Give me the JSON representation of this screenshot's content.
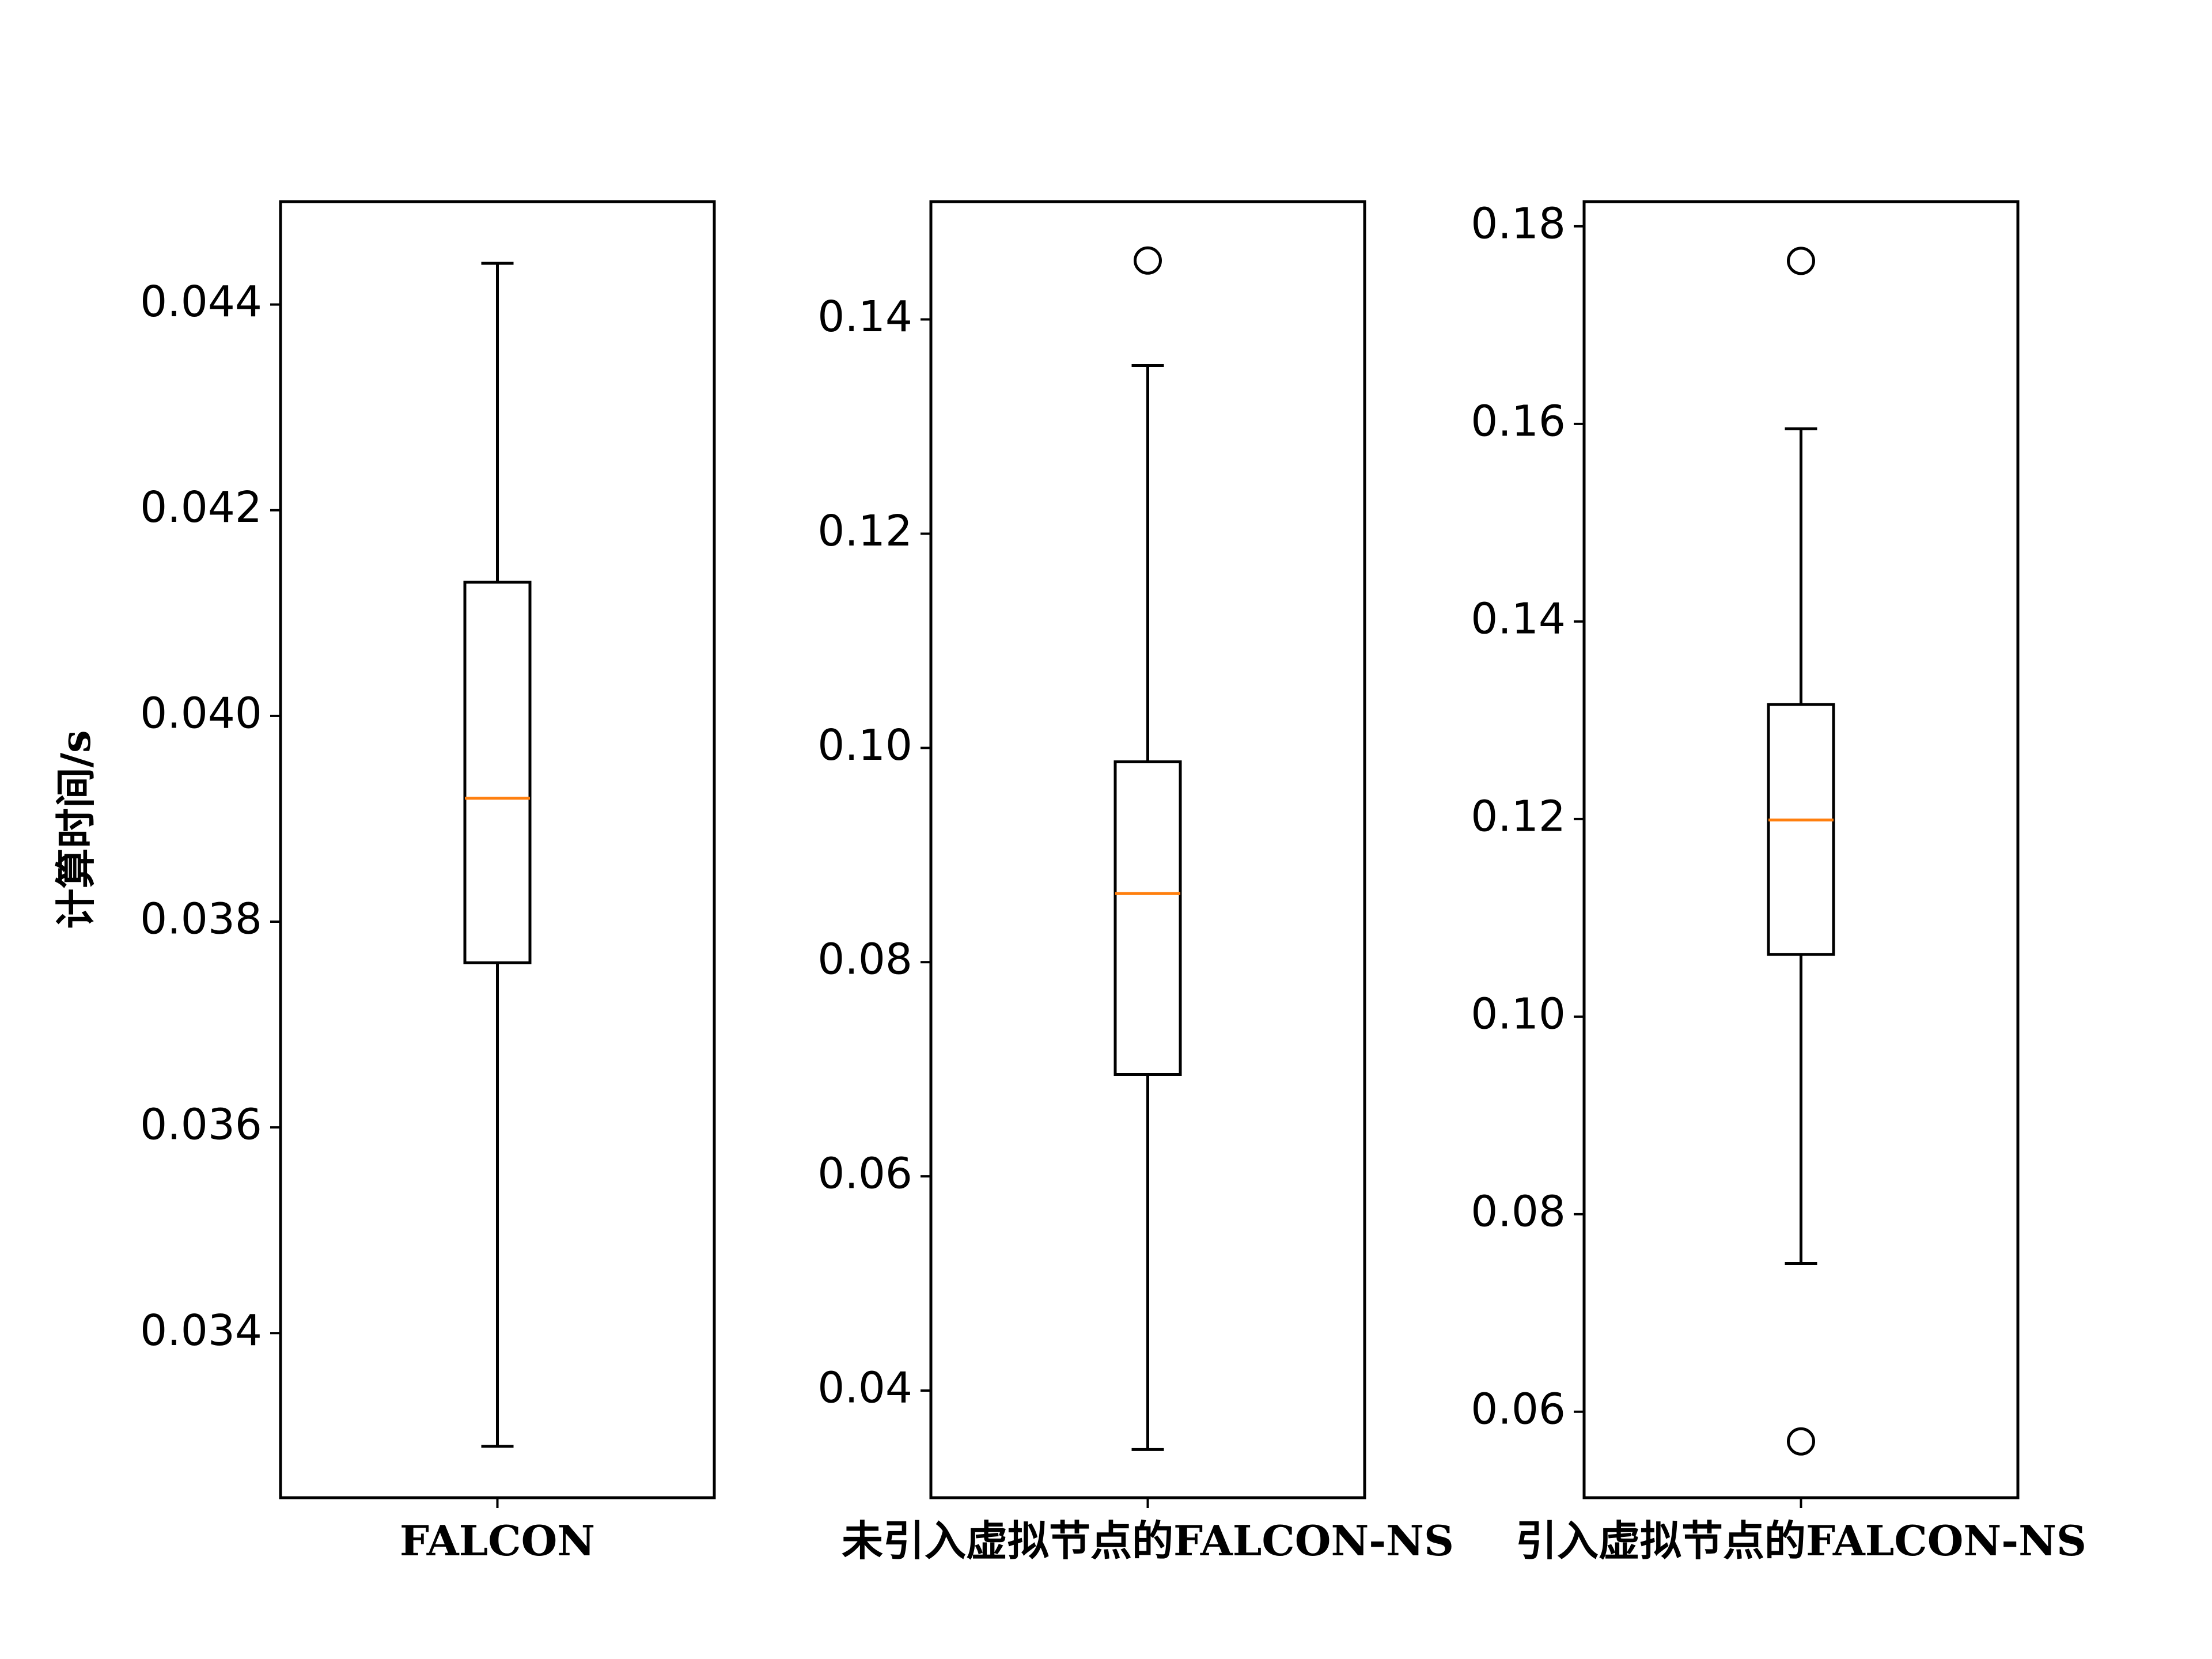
{
  "chart_data": [
    {
      "type": "box",
      "category": "FALCON",
      "ylabel": "计算时间/s",
      "ylim": [
        0.0324,
        0.045
      ],
      "yticks": [
        0.034,
        0.036,
        0.038,
        0.04,
        0.042,
        0.044
      ],
      "ytick_labels": [
        "0.034",
        "0.036",
        "0.038",
        "0.040",
        "0.042",
        "0.044"
      ],
      "box": {
        "whisker_low": 0.0329,
        "q1": 0.0376,
        "median": 0.0392,
        "q3": 0.0413,
        "whisker_high": 0.0444
      },
      "outliers": []
    },
    {
      "type": "box",
      "category": "未引入虚拟节点的FALCON-NS",
      "ylim": [
        0.03,
        0.151
      ],
      "yticks": [
        0.04,
        0.06,
        0.08,
        0.1,
        0.12,
        0.14
      ],
      "ytick_labels": [
        "0.04",
        "0.06",
        "0.08",
        "0.10",
        "0.12",
        "0.14"
      ],
      "box": {
        "whisker_low": 0.0345,
        "q1": 0.0695,
        "median": 0.0864,
        "q3": 0.0987,
        "whisker_high": 0.1357
      },
      "outliers": [
        0.1455
      ]
    },
    {
      "type": "box",
      "category": "引入虚拟节点的FALCON-NS",
      "ylim": [
        0.0513,
        0.1825
      ],
      "yticks": [
        0.06,
        0.08,
        0.1,
        0.12,
        0.14,
        0.16,
        0.18
      ],
      "ytick_labels": [
        "0.06",
        "0.08",
        "0.10",
        "0.12",
        "0.14",
        "0.16",
        "0.18"
      ],
      "box": {
        "whisker_low": 0.075,
        "q1": 0.1063,
        "median": 0.1199,
        "q3": 0.1316,
        "whisker_high": 0.1595
      },
      "outliers": [
        0.1765,
        0.057
      ]
    }
  ],
  "colors": {
    "median": "#ff7f0e",
    "box": "#000000"
  }
}
